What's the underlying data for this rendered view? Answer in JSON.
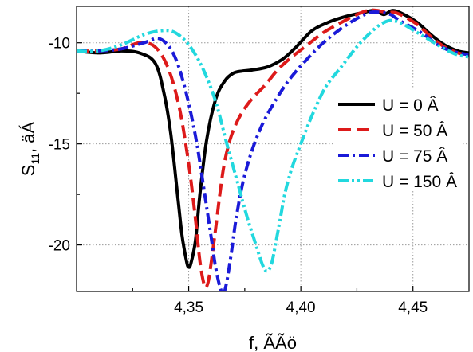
{
  "chart_data": {
    "type": "line",
    "xlabel": "f, ÃÃö",
    "ylabel_main": "S",
    "ylabel_sub": "11",
    "ylabel_rest": ", äÁ",
    "xlim": [
      4.3,
      4.475
    ],
    "ylim": [
      -22.3,
      -8.2
    ],
    "x_ticks": [
      4.35,
      4.4,
      4.45
    ],
    "x_tick_labels": [
      "4,35",
      "4,40",
      "4,45"
    ],
    "x_minor_ticks": [
      4.325,
      4.375,
      4.425
    ],
    "y_ticks": [
      -10,
      -15,
      -20
    ],
    "y_tick_labels": [
      "-10",
      "-15",
      "-20"
    ],
    "grid": true,
    "legend_position": "right",
    "series": [
      {
        "name": "U = 0 Â",
        "color": "#000000",
        "dash": "solid",
        "x": [
          4.3,
          4.31,
          4.32,
          4.328,
          4.335,
          4.339,
          4.342,
          4.345,
          4.347,
          4.349,
          4.35,
          4.351,
          4.353,
          4.355,
          4.358,
          4.362,
          4.366,
          4.37,
          4.374,
          4.378,
          4.385,
          4.392,
          4.398,
          4.405,
          4.412,
          4.42,
          4.428,
          4.433,
          4.437,
          4.441,
          4.446,
          4.452,
          4.458,
          4.464,
          4.47,
          4.475
        ],
        "y": [
          -10.4,
          -10.5,
          -10.4,
          -10.5,
          -11.0,
          -12.5,
          -14.5,
          -17.5,
          -19.5,
          -20.8,
          -21.1,
          -20.9,
          -19.8,
          -17.5,
          -14.8,
          -12.8,
          -11.9,
          -11.5,
          -11.4,
          -11.35,
          -11.2,
          -10.8,
          -10.2,
          -9.4,
          -9.0,
          -8.7,
          -8.5,
          -8.4,
          -8.6,
          -8.4,
          -8.6,
          -9.0,
          -9.6,
          -10.1,
          -10.4,
          -10.5
        ]
      },
      {
        "name": "U = 50 Â",
        "color": "#dd1a1a",
        "dash": "long-dash",
        "x": [
          4.3,
          4.31,
          4.32,
          4.328,
          4.335,
          4.341,
          4.346,
          4.35,
          4.353,
          4.355,
          4.357,
          4.3585,
          4.36,
          4.362,
          4.364,
          4.366,
          4.369,
          4.373,
          4.378,
          4.384,
          4.39,
          4.396,
          4.403,
          4.41,
          4.418,
          4.425,
          4.43,
          4.434,
          4.438,
          4.442,
          4.446,
          4.452,
          4.458,
          4.464,
          4.47,
          4.475
        ],
        "y": [
          -10.4,
          -10.4,
          -10.3,
          -10.0,
          -10.2,
          -11.3,
          -13.3,
          -16.0,
          -18.7,
          -20.8,
          -22.0,
          -21.9,
          -20.9,
          -19.2,
          -17.4,
          -15.9,
          -14.6,
          -13.6,
          -12.8,
          -12.1,
          -11.3,
          -10.7,
          -10.1,
          -9.5,
          -9.0,
          -8.6,
          -8.4,
          -8.4,
          -8.5,
          -8.5,
          -8.7,
          -9.1,
          -9.7,
          -10.2,
          -10.5,
          -10.6
        ]
      },
      {
        "name": "U = 75 Â",
        "color": "#1a1ad8",
        "dash": "dash-dot",
        "x": [
          4.3,
          4.31,
          4.32,
          4.33,
          4.337,
          4.343,
          4.348,
          4.353,
          4.357,
          4.36,
          4.362,
          4.364,
          4.3655,
          4.367,
          4.369,
          4.371,
          4.374,
          4.378,
          4.383,
          4.389,
          4.395,
          4.402,
          4.41,
          4.418,
          4.425,
          4.431,
          4.436,
          4.44,
          4.444,
          4.449,
          4.455,
          4.461,
          4.467,
          4.475
        ],
        "y": [
          -10.4,
          -10.4,
          -10.3,
          -10.0,
          -9.8,
          -10.5,
          -12.1,
          -14.6,
          -17.4,
          -19.6,
          -21.1,
          -22.1,
          -22.4,
          -21.8,
          -20.4,
          -18.8,
          -17.0,
          -15.4,
          -14.0,
          -12.8,
          -11.8,
          -10.9,
          -10.0,
          -9.3,
          -8.8,
          -8.5,
          -8.5,
          -8.6,
          -8.9,
          -9.2,
          -9.6,
          -10.1,
          -10.4,
          -10.6
        ]
      },
      {
        "name": "U = 150 Â",
        "color": "#22d8de",
        "dash": "dash-dot-dot",
        "x": [
          4.3,
          4.31,
          4.32,
          4.33,
          4.338,
          4.344,
          4.35,
          4.356,
          4.362,
          4.367,
          4.372,
          4.376,
          4.38,
          4.383,
          4.385,
          4.387,
          4.389,
          4.391,
          4.393,
          4.396,
          4.4,
          4.405,
          4.411,
          4.418,
          4.425,
          4.432,
          4.437,
          4.441,
          4.446,
          4.452,
          4.458,
          4.464,
          4.47,
          4.475
        ],
        "y": [
          -10.4,
          -10.4,
          -10.1,
          -9.6,
          -9.4,
          -9.5,
          -10.1,
          -11.2,
          -12.9,
          -15.0,
          -17.0,
          -18.6,
          -20.0,
          -21.0,
          -21.3,
          -20.9,
          -19.8,
          -18.6,
          -17.4,
          -16.2,
          -15.0,
          -13.6,
          -12.2,
          -11.2,
          -10.2,
          -9.4,
          -9.0,
          -8.9,
          -9.1,
          -9.5,
          -9.9,
          -10.3,
          -10.6,
          -10.7
        ]
      }
    ]
  }
}
